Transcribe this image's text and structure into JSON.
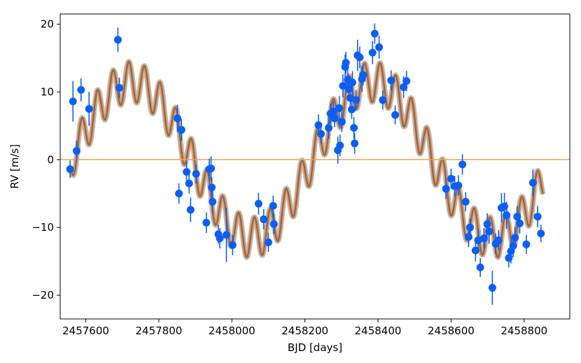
{
  "chart_data": {
    "type": "scatter",
    "xlabel": "BJD [days]",
    "ylabel": "RV [m/s]",
    "xlim": [
      2457530,
      2458925
    ],
    "ylim": [
      -23.5,
      21.5
    ],
    "xticks": [
      2457600,
      2457800,
      2458000,
      2458200,
      2458400,
      2458600,
      2458800
    ],
    "xtick_labels": [
      "2457600",
      "2457800",
      "2458000",
      "2458200",
      "2458400",
      "2458600",
      "2458800"
    ],
    "yticks": [
      -20,
      -10,
      0,
      10,
      20
    ],
    "ytick_labels": [
      "−20",
      "−10",
      "0",
      "10",
      "20"
    ],
    "grid": false,
    "reference_line": {
      "y": 0,
      "color": "#f5a24b"
    },
    "colors": {
      "points": "#0b5ff5",
      "model_band": "#f58a3c",
      "model_gray": "#8f8f8f",
      "model_line": "#6e6e6e"
    },
    "model": {
      "x_start": 2457560,
      "x_end": 2458852,
      "period_long": 660,
      "amplitude_long": 11.5,
      "peak_long": 2458385,
      "period_short": 43,
      "amplitude_short": 3.0,
      "phase_short": 2457578,
      "offset": 0
    },
    "series": [
      {
        "points": [
          {
            "x": 2457557,
            "y": -1.4,
            "err": 1.3
          },
          {
            "x": 2457565,
            "y": 8.6,
            "err": 3.0
          },
          {
            "x": 2457575,
            "y": 1.3,
            "err": 1.5
          },
          {
            "x": 2457587,
            "y": 10.3,
            "err": 1.7
          },
          {
            "x": 2457609,
            "y": 7.5,
            "err": 2.5
          },
          {
            "x": 2457688,
            "y": 17.7,
            "err": 1.8
          },
          {
            "x": 2457692,
            "y": 10.6,
            "err": 1.5
          },
          {
            "x": 2457851,
            "y": 6.1,
            "err": 2.0
          },
          {
            "x": 2457855,
            "y": -5.0,
            "err": 1.5
          },
          {
            "x": 2457862,
            "y": 4.4,
            "err": 1.6
          },
          {
            "x": 2457876,
            "y": -1.8,
            "err": 1.5
          },
          {
            "x": 2457883,
            "y": -3.5,
            "err": 1.5
          },
          {
            "x": 2457887,
            "y": -7.4,
            "err": 1.8
          },
          {
            "x": 2457902,
            "y": -2.1,
            "err": 1.4
          },
          {
            "x": 2457930,
            "y": -9.3,
            "err": 1.5
          },
          {
            "x": 2457938,
            "y": -1.4,
            "err": 1.6
          },
          {
            "x": 2457943,
            "y": -1.3,
            "err": 1.8
          },
          {
            "x": 2457945,
            "y": -4.1,
            "err": 1.5
          },
          {
            "x": 2457947,
            "y": -6.2,
            "err": 1.7
          },
          {
            "x": 2457963,
            "y": -11.0,
            "err": 1.4
          },
          {
            "x": 2457967,
            "y": -11.6,
            "err": 1.5
          },
          {
            "x": 2457985,
            "y": -11.1,
            "err": 4.0
          },
          {
            "x": 2458002,
            "y": -12.6,
            "err": 1.5
          },
          {
            "x": 2458073,
            "y": -6.5,
            "err": 1.6
          },
          {
            "x": 2458087,
            "y": -8.8,
            "err": 1.5
          },
          {
            "x": 2458100,
            "y": -12.2,
            "err": 1.4
          },
          {
            "x": 2458113,
            "y": -6.8,
            "err": 1.5
          },
          {
            "x": 2458115,
            "y": -9.5,
            "err": 1.5
          },
          {
            "x": 2458237,
            "y": 5.1,
            "err": 1.6
          },
          {
            "x": 2458244,
            "y": 3.8,
            "err": 1.4
          },
          {
            "x": 2458265,
            "y": 4.7,
            "err": 1.6
          },
          {
            "x": 2458270,
            "y": 6.8,
            "err": 1.5
          },
          {
            "x": 2458278,
            "y": 7.1,
            "err": 1.5
          },
          {
            "x": 2458281,
            "y": 6.1,
            "err": 1.3
          },
          {
            "x": 2458290,
            "y": 1.4,
            "err": 2.0
          },
          {
            "x": 2458294,
            "y": 7.6,
            "err": 1.8
          },
          {
            "x": 2458296,
            "y": 2.1,
            "err": 1.6
          },
          {
            "x": 2458301,
            "y": 5.6,
            "err": 1.5
          },
          {
            "x": 2458304,
            "y": 10.9,
            "err": 1.7
          },
          {
            "x": 2458310,
            "y": 13.7,
            "err": 1.8
          },
          {
            "x": 2458312,
            "y": 14.3,
            "err": 1.6
          },
          {
            "x": 2458317,
            "y": 11.8,
            "err": 1.7
          },
          {
            "x": 2458320,
            "y": 10.4,
            "err": 1.4
          },
          {
            "x": 2458324,
            "y": 9.1,
            "err": 1.7
          },
          {
            "x": 2458328,
            "y": 7.4,
            "err": 1.4
          },
          {
            "x": 2458330,
            "y": 11.4,
            "err": 1.7
          },
          {
            "x": 2458334,
            "y": 4.7,
            "err": 1.6
          },
          {
            "x": 2458336,
            "y": 2.4,
            "err": 1.5
          },
          {
            "x": 2458340,
            "y": 8.8,
            "err": 1.5
          },
          {
            "x": 2458344,
            "y": 15.4,
            "err": 2.3
          },
          {
            "x": 2458350,
            "y": 15.1,
            "err": 1.6
          },
          {
            "x": 2458356,
            "y": 11.9,
            "err": 1.9
          },
          {
            "x": 2458359,
            "y": 12.5,
            "err": 1.5
          },
          {
            "x": 2458385,
            "y": 15.8,
            "err": 1.7
          },
          {
            "x": 2458391,
            "y": 18.6,
            "err": 1.5
          },
          {
            "x": 2458403,
            "y": 16.6,
            "err": 1.7
          },
          {
            "x": 2458413,
            "y": 8.8,
            "err": 1.4
          },
          {
            "x": 2458436,
            "y": 11.7,
            "err": 1.5
          },
          {
            "x": 2458447,
            "y": 6.6,
            "err": 1.4
          },
          {
            "x": 2458470,
            "y": 10.7,
            "err": 1.6
          },
          {
            "x": 2458478,
            "y": 11.6,
            "err": 1.5
          },
          {
            "x": 2458586,
            "y": -4.3,
            "err": 1.5
          },
          {
            "x": 2458600,
            "y": -2.8,
            "err": 1.5
          },
          {
            "x": 2458610,
            "y": -3.9,
            "err": 1.5
          },
          {
            "x": 2458620,
            "y": -3.8,
            "err": 1.5
          },
          {
            "x": 2458631,
            "y": -0.7,
            "err": 1.5
          },
          {
            "x": 2458640,
            "y": -6.2,
            "err": 1.4
          },
          {
            "x": 2458648,
            "y": -11.4,
            "err": 1.5
          },
          {
            "x": 2458652,
            "y": -10.0,
            "err": 1.3
          },
          {
            "x": 2458667,
            "y": -13.4,
            "err": 1.6
          },
          {
            "x": 2458674,
            "y": -11.9,
            "err": 1.7
          },
          {
            "x": 2458680,
            "y": -15.9,
            "err": 1.4
          },
          {
            "x": 2458690,
            "y": -11.6,
            "err": 1.5
          },
          {
            "x": 2458699,
            "y": -9.5,
            "err": 1.6
          },
          {
            "x": 2458704,
            "y": -10.6,
            "err": 1.8
          },
          {
            "x": 2458713,
            "y": -18.9,
            "err": 2.5
          },
          {
            "x": 2458722,
            "y": -12.4,
            "err": 1.5
          },
          {
            "x": 2458730,
            "y": -11.9,
            "err": 1.5
          },
          {
            "x": 2458738,
            "y": -7.1,
            "err": 2.2
          },
          {
            "x": 2458746,
            "y": -6.9,
            "err": 2.0
          },
          {
            "x": 2458752,
            "y": -8.2,
            "err": 2.0
          },
          {
            "x": 2458758,
            "y": -14.5,
            "err": 1.4
          },
          {
            "x": 2458764,
            "y": -13.5,
            "err": 1.8
          },
          {
            "x": 2458770,
            "y": -12.7,
            "err": 1.7
          },
          {
            "x": 2458775,
            "y": -11.5,
            "err": 1.6
          },
          {
            "x": 2458781,
            "y": -8.4,
            "err": 1.6
          },
          {
            "x": 2458788,
            "y": -9.4,
            "err": 1.5
          },
          {
            "x": 2458806,
            "y": -12.5,
            "err": 1.4
          },
          {
            "x": 2458824,
            "y": -3.4,
            "err": 2.0
          },
          {
            "x": 2458837,
            "y": -8.4,
            "err": 1.6
          },
          {
            "x": 2458846,
            "y": -10.9,
            "err": 1.3
          }
        ]
      }
    ]
  }
}
